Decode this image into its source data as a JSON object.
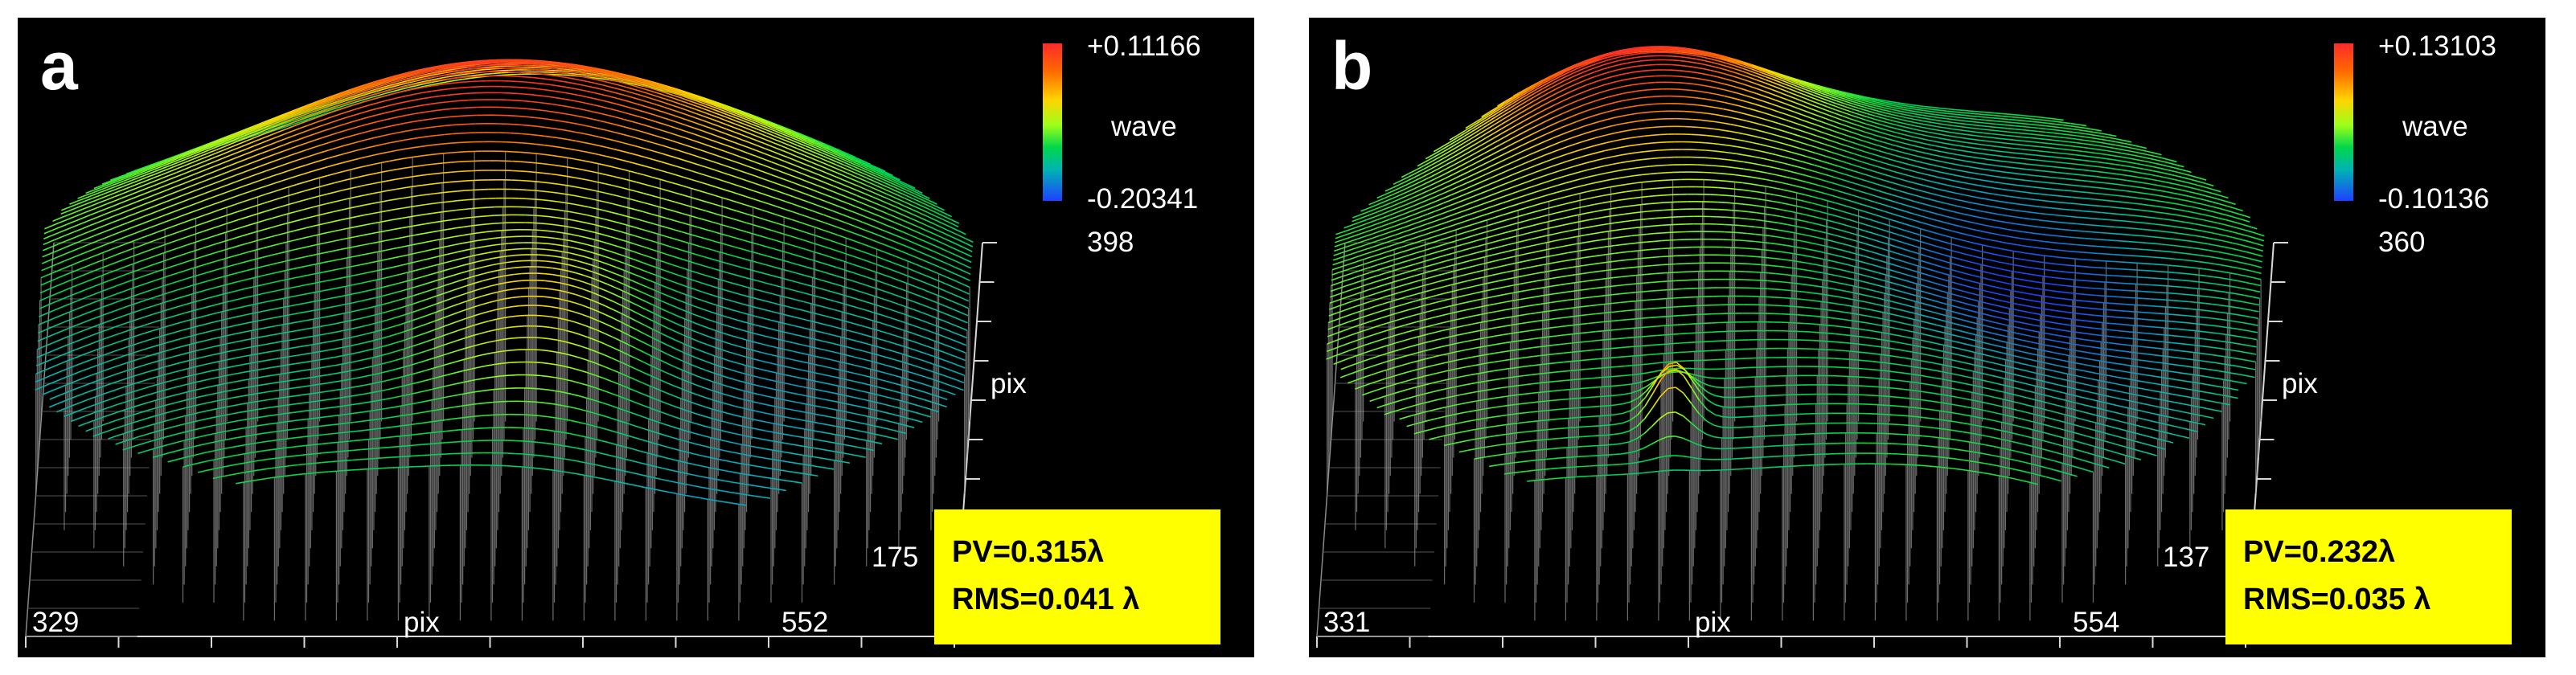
{
  "panels": [
    {
      "letter": "a",
      "colorbar": {
        "max": "+0.11166",
        "unit": "wave",
        "min": "-0.20341"
      },
      "axes": {
        "y_max": "398",
        "y_label": "pix",
        "y_min": "175",
        "x_min": "329",
        "x_label": "pix",
        "x_max": "552"
      },
      "stats": {
        "pv": "PV=0.315λ",
        "rms": "RMS=0.041 λ"
      }
    },
    {
      "letter": "b",
      "colorbar": {
        "max": "+0.13103",
        "unit": "wave",
        "min": "-0.10136"
      },
      "axes": {
        "y_max": "360",
        "y_label": "pix",
        "y_min": "137",
        "x_min": "331",
        "x_label": "pix",
        "x_max": "554"
      },
      "stats": {
        "pv": "PV=0.232λ",
        "rms": "RMS=0.035 λ"
      }
    }
  ],
  "colors": {
    "background": "#000000",
    "stat_box": "#ffff00",
    "high": "#ff2a2a",
    "low": "#1e40ff"
  },
  "chart_data": [
    {
      "type": "surface",
      "panel": "a",
      "x_range": [
        329,
        552
      ],
      "y_range": [
        175,
        398
      ],
      "z_range": [
        -0.20341,
        0.11166
      ],
      "z_unit": "wave",
      "pv": 0.315,
      "rms": 0.041
    },
    {
      "type": "surface",
      "panel": "b",
      "x_range": [
        331,
        554
      ],
      "y_range": [
        137,
        360
      ],
      "z_range": [
        -0.10136,
        0.13103
      ],
      "z_unit": "wave",
      "pv": 0.232,
      "rms": 0.035
    }
  ]
}
